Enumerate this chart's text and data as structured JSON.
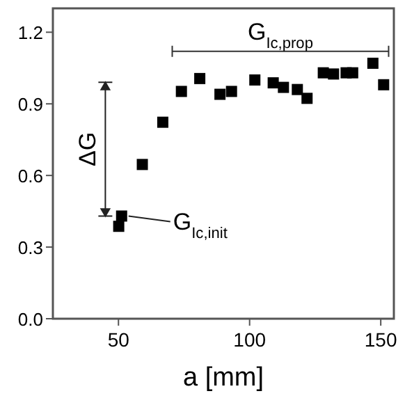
{
  "chart_data": {
    "type": "scatter",
    "xlabel": "a [mm]",
    "marker": "square",
    "xlim": [
      25,
      155
    ],
    "ylim": [
      0,
      1.3
    ],
    "xticks": [
      50,
      100,
      150
    ],
    "yticks": [
      {
        "value": 0,
        "label": "0.0"
      },
      {
        "value": 0.3,
        "label": "0.3"
      },
      {
        "value": 0.6,
        "label": "0.6"
      },
      {
        "value": 0.9,
        "label": "0.9"
      },
      {
        "value": 1.2,
        "label": "1.2"
      }
    ],
    "series": [
      {
        "color": "#000000",
        "x": [
          50.1,
          51.2,
          59.1,
          66.9,
          74,
          81,
          88.7,
          93.1,
          102,
          109,
          112.9,
          118.2,
          121.9,
          128.1,
          132,
          136.8,
          139.3,
          147,
          151.1
        ],
        "values": [
          0.387,
          0.43,
          0.646,
          0.823,
          0.952,
          1.006,
          0.94,
          0.952,
          1.0,
          0.988,
          0.969,
          0.96,
          0.923,
          1.03,
          1.025,
          1.03,
          1.03,
          1.07,
          0.98
        ]
      }
    ],
    "annotations": [
      "ΔG",
      {
        "text": "G$_{Ic,init}$",
        "x": 51.2,
        "y": 0.43
      },
      "G$_{Ic,prop}$"
    ]
  }
}
